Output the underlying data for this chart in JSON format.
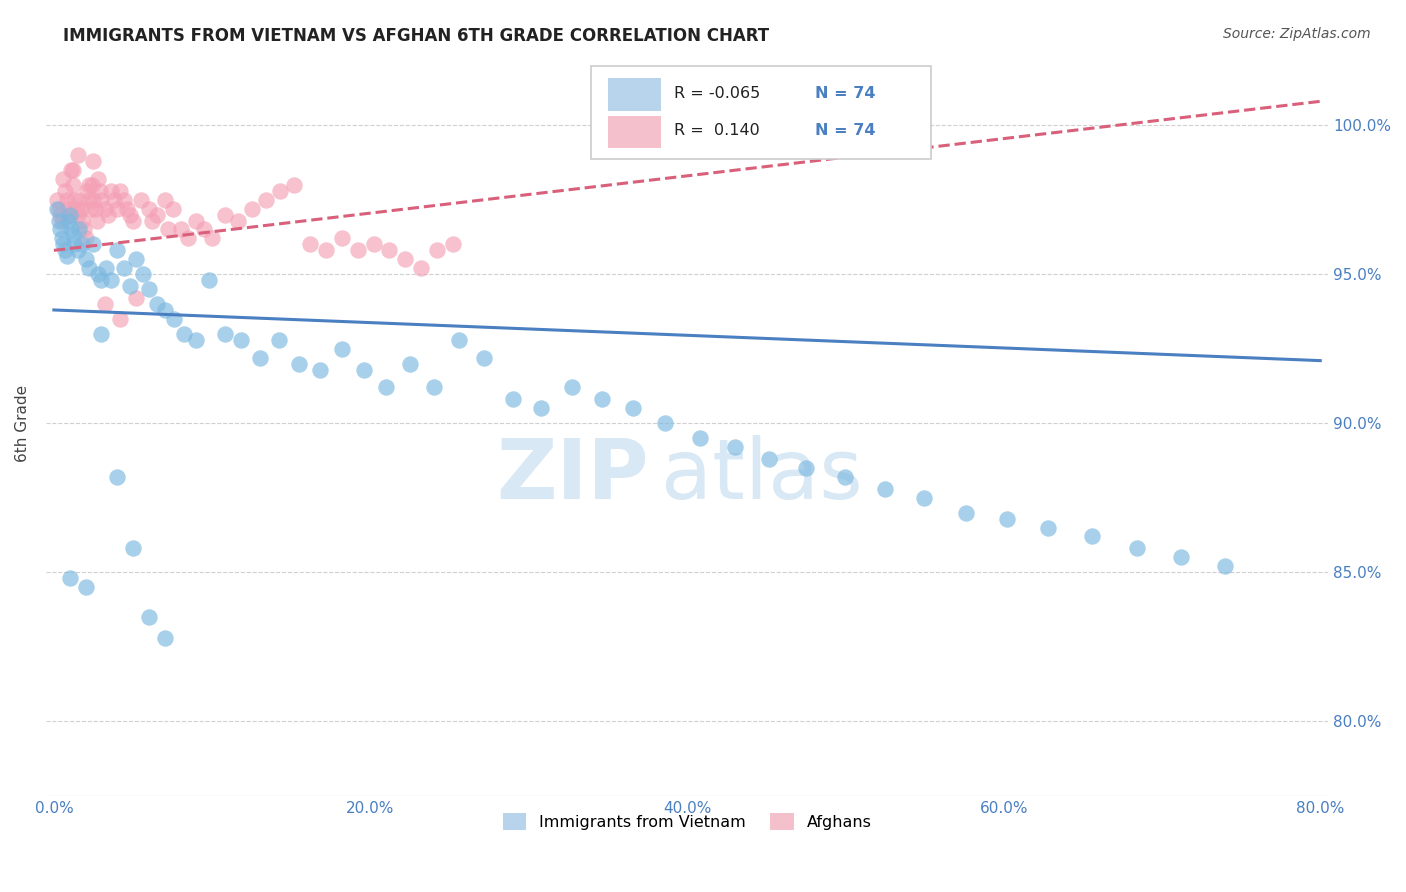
{
  "title": "IMMIGRANTS FROM VIETNAM VS AFGHAN 6TH GRADE CORRELATION CHART",
  "source": "Source: ZipAtlas.com",
  "ylabel": "6th Grade",
  "xlabel_ticks": [
    "0.0%",
    "20.0%",
    "40.0%",
    "60.0%",
    "80.0%"
  ],
  "ylabel_ticks": [
    "80.0%",
    "85.0%",
    "90.0%",
    "95.0%",
    "100.0%"
  ],
  "xlabel_values": [
    0.0,
    0.2,
    0.4,
    0.6,
    0.8
  ],
  "ylabel_values": [
    0.8,
    0.85,
    0.9,
    0.95,
    1.0
  ],
  "xlim": [
    -0.005,
    0.805
  ],
  "ylim": [
    0.775,
    1.025
  ],
  "R_vietnam": -0.065,
  "N_vietnam": 74,
  "R_afghan": 0.14,
  "N_afghan": 74,
  "color_vietnam": "#7bb8e0",
  "color_afghan": "#f4a0b5",
  "trendline_vietnam_color": "#4a7fc1",
  "trendline_afghan_color": "#d9607a",
  "legend_box_color_vietnam": "#b8d4ed",
  "legend_box_color_afghan": "#f4c0cc",
  "vietnam_trendline": [
    0.0,
    0.938,
    0.8,
    0.921
  ],
  "afghan_trendline": [
    0.0,
    0.958,
    0.8,
    1.008
  ],
  "vietnam_scatter_x": [
    0.002,
    0.003,
    0.004,
    0.005,
    0.006,
    0.007,
    0.008,
    0.009,
    0.01,
    0.011,
    0.012,
    0.013,
    0.015,
    0.016,
    0.018,
    0.02,
    0.022,
    0.025,
    0.028,
    0.03,
    0.033,
    0.036,
    0.04,
    0.044,
    0.048,
    0.052,
    0.056,
    0.06,
    0.065,
    0.07,
    0.076,
    0.082,
    0.09,
    0.098,
    0.108,
    0.118,
    0.13,
    0.142,
    0.155,
    0.168,
    0.182,
    0.196,
    0.21,
    0.225,
    0.24,
    0.256,
    0.272,
    0.29,
    0.308,
    0.327,
    0.346,
    0.366,
    0.386,
    0.408,
    0.43,
    0.452,
    0.475,
    0.5,
    0.525,
    0.55,
    0.576,
    0.602,
    0.628,
    0.656,
    0.684,
    0.712,
    0.74,
    0.01,
    0.02,
    0.03,
    0.04,
    0.05,
    0.06,
    0.07
  ],
  "vietnam_scatter_y": [
    0.972,
    0.968,
    0.965,
    0.962,
    0.96,
    0.958,
    0.956,
    0.968,
    0.97,
    0.965,
    0.963,
    0.96,
    0.958,
    0.965,
    0.96,
    0.955,
    0.952,
    0.96,
    0.95,
    0.948,
    0.952,
    0.948,
    0.958,
    0.952,
    0.946,
    0.955,
    0.95,
    0.945,
    0.94,
    0.938,
    0.935,
    0.93,
    0.928,
    0.948,
    0.93,
    0.928,
    0.922,
    0.928,
    0.92,
    0.918,
    0.925,
    0.918,
    0.912,
    0.92,
    0.912,
    0.928,
    0.922,
    0.908,
    0.905,
    0.912,
    0.908,
    0.905,
    0.9,
    0.895,
    0.892,
    0.888,
    0.885,
    0.882,
    0.878,
    0.875,
    0.87,
    0.868,
    0.865,
    0.862,
    0.858,
    0.855,
    0.852,
    0.848,
    0.845,
    0.93,
    0.882,
    0.858,
    0.835,
    0.828
  ],
  "afghan_scatter_x": [
    0.002,
    0.003,
    0.004,
    0.005,
    0.006,
    0.007,
    0.008,
    0.009,
    0.01,
    0.011,
    0.012,
    0.013,
    0.014,
    0.015,
    0.016,
    0.017,
    0.018,
    0.019,
    0.02,
    0.021,
    0.022,
    0.023,
    0.024,
    0.025,
    0.026,
    0.027,
    0.028,
    0.029,
    0.03,
    0.032,
    0.034,
    0.036,
    0.038,
    0.04,
    0.042,
    0.044,
    0.046,
    0.048,
    0.05,
    0.055,
    0.06,
    0.065,
    0.07,
    0.075,
    0.08,
    0.085,
    0.09,
    0.095,
    0.1,
    0.108,
    0.116,
    0.125,
    0.134,
    0.143,
    0.152,
    0.162,
    0.172,
    0.182,
    0.192,
    0.202,
    0.212,
    0.222,
    0.232,
    0.242,
    0.252,
    0.062,
    0.072,
    0.032,
    0.042,
    0.052,
    0.012,
    0.022,
    0.015,
    0.025
  ],
  "afghan_scatter_y": [
    0.975,
    0.972,
    0.97,
    0.968,
    0.982,
    0.978,
    0.975,
    0.972,
    0.97,
    0.985,
    0.98,
    0.975,
    0.972,
    0.97,
    0.975,
    0.972,
    0.968,
    0.965,
    0.962,
    0.978,
    0.975,
    0.972,
    0.98,
    0.975,
    0.972,
    0.968,
    0.982,
    0.978,
    0.975,
    0.972,
    0.97,
    0.978,
    0.975,
    0.972,
    0.978,
    0.975,
    0.972,
    0.97,
    0.968,
    0.975,
    0.972,
    0.97,
    0.975,
    0.972,
    0.965,
    0.962,
    0.968,
    0.965,
    0.962,
    0.97,
    0.968,
    0.972,
    0.975,
    0.978,
    0.98,
    0.96,
    0.958,
    0.962,
    0.958,
    0.96,
    0.958,
    0.955,
    0.952,
    0.958,
    0.96,
    0.968,
    0.965,
    0.94,
    0.935,
    0.942,
    0.985,
    0.98,
    0.99,
    0.988
  ],
  "watermark_zip": "ZIP",
  "watermark_atlas": "atlas",
  "background_color": "#ffffff",
  "grid_color": "#d0d0d0",
  "tick_color": "#4a7fc1",
  "title_color": "#222222",
  "legend_border_color": "#cccccc",
  "axis_line_color": "#aaaaaa"
}
